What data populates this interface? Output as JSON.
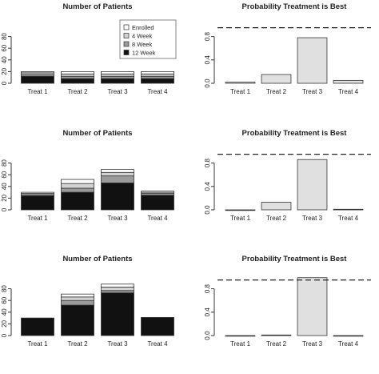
{
  "chart_data": [
    {
      "type": "bar",
      "stacked": true,
      "title": "Number of Patients",
      "categories": [
        "Treat 1",
        "Treat 2",
        "Treat 3",
        "Treat 4"
      ],
      "ylim": [
        0,
        100
      ],
      "yticks": [
        0,
        20,
        40,
        60,
        80
      ],
      "legend": {
        "position": "top-right",
        "entries": [
          "Enrolled",
          "4 Week",
          "8 Week",
          "12 Week"
        ]
      },
      "series": [
        {
          "name": "12 Week",
          "values": [
            12,
            8,
            8,
            8
          ]
        },
        {
          "name": "8 Week",
          "values": [
            3,
            4,
            4,
            4
          ]
        },
        {
          "name": "4 Week",
          "values": [
            3,
            4,
            4,
            4
          ]
        },
        {
          "name": "Enrolled",
          "values": [
            2,
            4,
            4,
            4
          ]
        }
      ]
    },
    {
      "type": "bar",
      "title": "Probability Treatment is Best",
      "categories": [
        "Treat 1",
        "Treat 2",
        "Treat 3",
        "Treat 4"
      ],
      "values": [
        0.02,
        0.15,
        0.78,
        0.05
      ],
      "ylim": [
        0,
        1.0
      ],
      "yticks": [
        0.0,
        0.4,
        0.8
      ],
      "reference_line": 0.95
    },
    {
      "type": "bar",
      "stacked": true,
      "title": "Number of Patients",
      "categories": [
        "Treat 1",
        "Treat 2",
        "Treat 3",
        "Treat 4"
      ],
      "ylim": [
        0,
        100
      ],
      "yticks": [
        0,
        20,
        40,
        60,
        80
      ],
      "series": [
        {
          "name": "12 Week",
          "values": [
            24,
            30,
            46,
            25
          ]
        },
        {
          "name": "8 Week",
          "values": [
            2,
            7,
            12,
            3
          ]
        },
        {
          "name": "4 Week",
          "values": [
            2,
            8,
            6,
            2
          ]
        },
        {
          "name": "Enrolled",
          "values": [
            2,
            7,
            5,
            2
          ]
        }
      ]
    },
    {
      "type": "bar",
      "title": "Probability Treatment is Best",
      "categories": [
        "Treat 1",
        "Treat 2",
        "Treat 3",
        "Treat 4"
      ],
      "values": [
        0.0,
        0.13,
        0.86,
        0.01
      ],
      "ylim": [
        0,
        1.0
      ],
      "yticks": [
        0.0,
        0.4,
        0.8
      ],
      "reference_line": 0.95
    },
    {
      "type": "bar",
      "stacked": true,
      "title": "Number of Patients",
      "categories": [
        "Treat 1",
        "Treat 2",
        "Treat 3",
        "Treat 4"
      ],
      "ylim": [
        0,
        100
      ],
      "yticks": [
        0,
        20,
        40,
        60,
        80
      ],
      "series": [
        {
          "name": "12 Week",
          "values": [
            30,
            52,
            73,
            31
          ]
        },
        {
          "name": "8 Week",
          "values": [
            0,
            8,
            4,
            0
          ]
        },
        {
          "name": "4 Week",
          "values": [
            0,
            6,
            6,
            0
          ]
        },
        {
          "name": "Enrolled",
          "values": [
            0,
            5,
            5,
            0
          ]
        }
      ]
    },
    {
      "type": "bar",
      "title": "Probability Treatment is Best",
      "categories": [
        "Treat 1",
        "Treat 2",
        "Treat 3",
        "Treat 4"
      ],
      "values": [
        0.0,
        0.01,
        0.99,
        0.0
      ],
      "ylim": [
        0,
        1.0
      ],
      "yticks": [
        0.0,
        0.4,
        0.8
      ],
      "reference_line": 0.95
    }
  ],
  "colors": {
    "12 Week": "#111111",
    "8 Week": "#9a9a9a",
    "4 Week": "#d2d2d2",
    "Enrolled": "#ffffff",
    "probability_bar": "#e0e0e0",
    "bar_stroke": "#333333",
    "axis": "#333333",
    "reference_line": "#222222"
  }
}
